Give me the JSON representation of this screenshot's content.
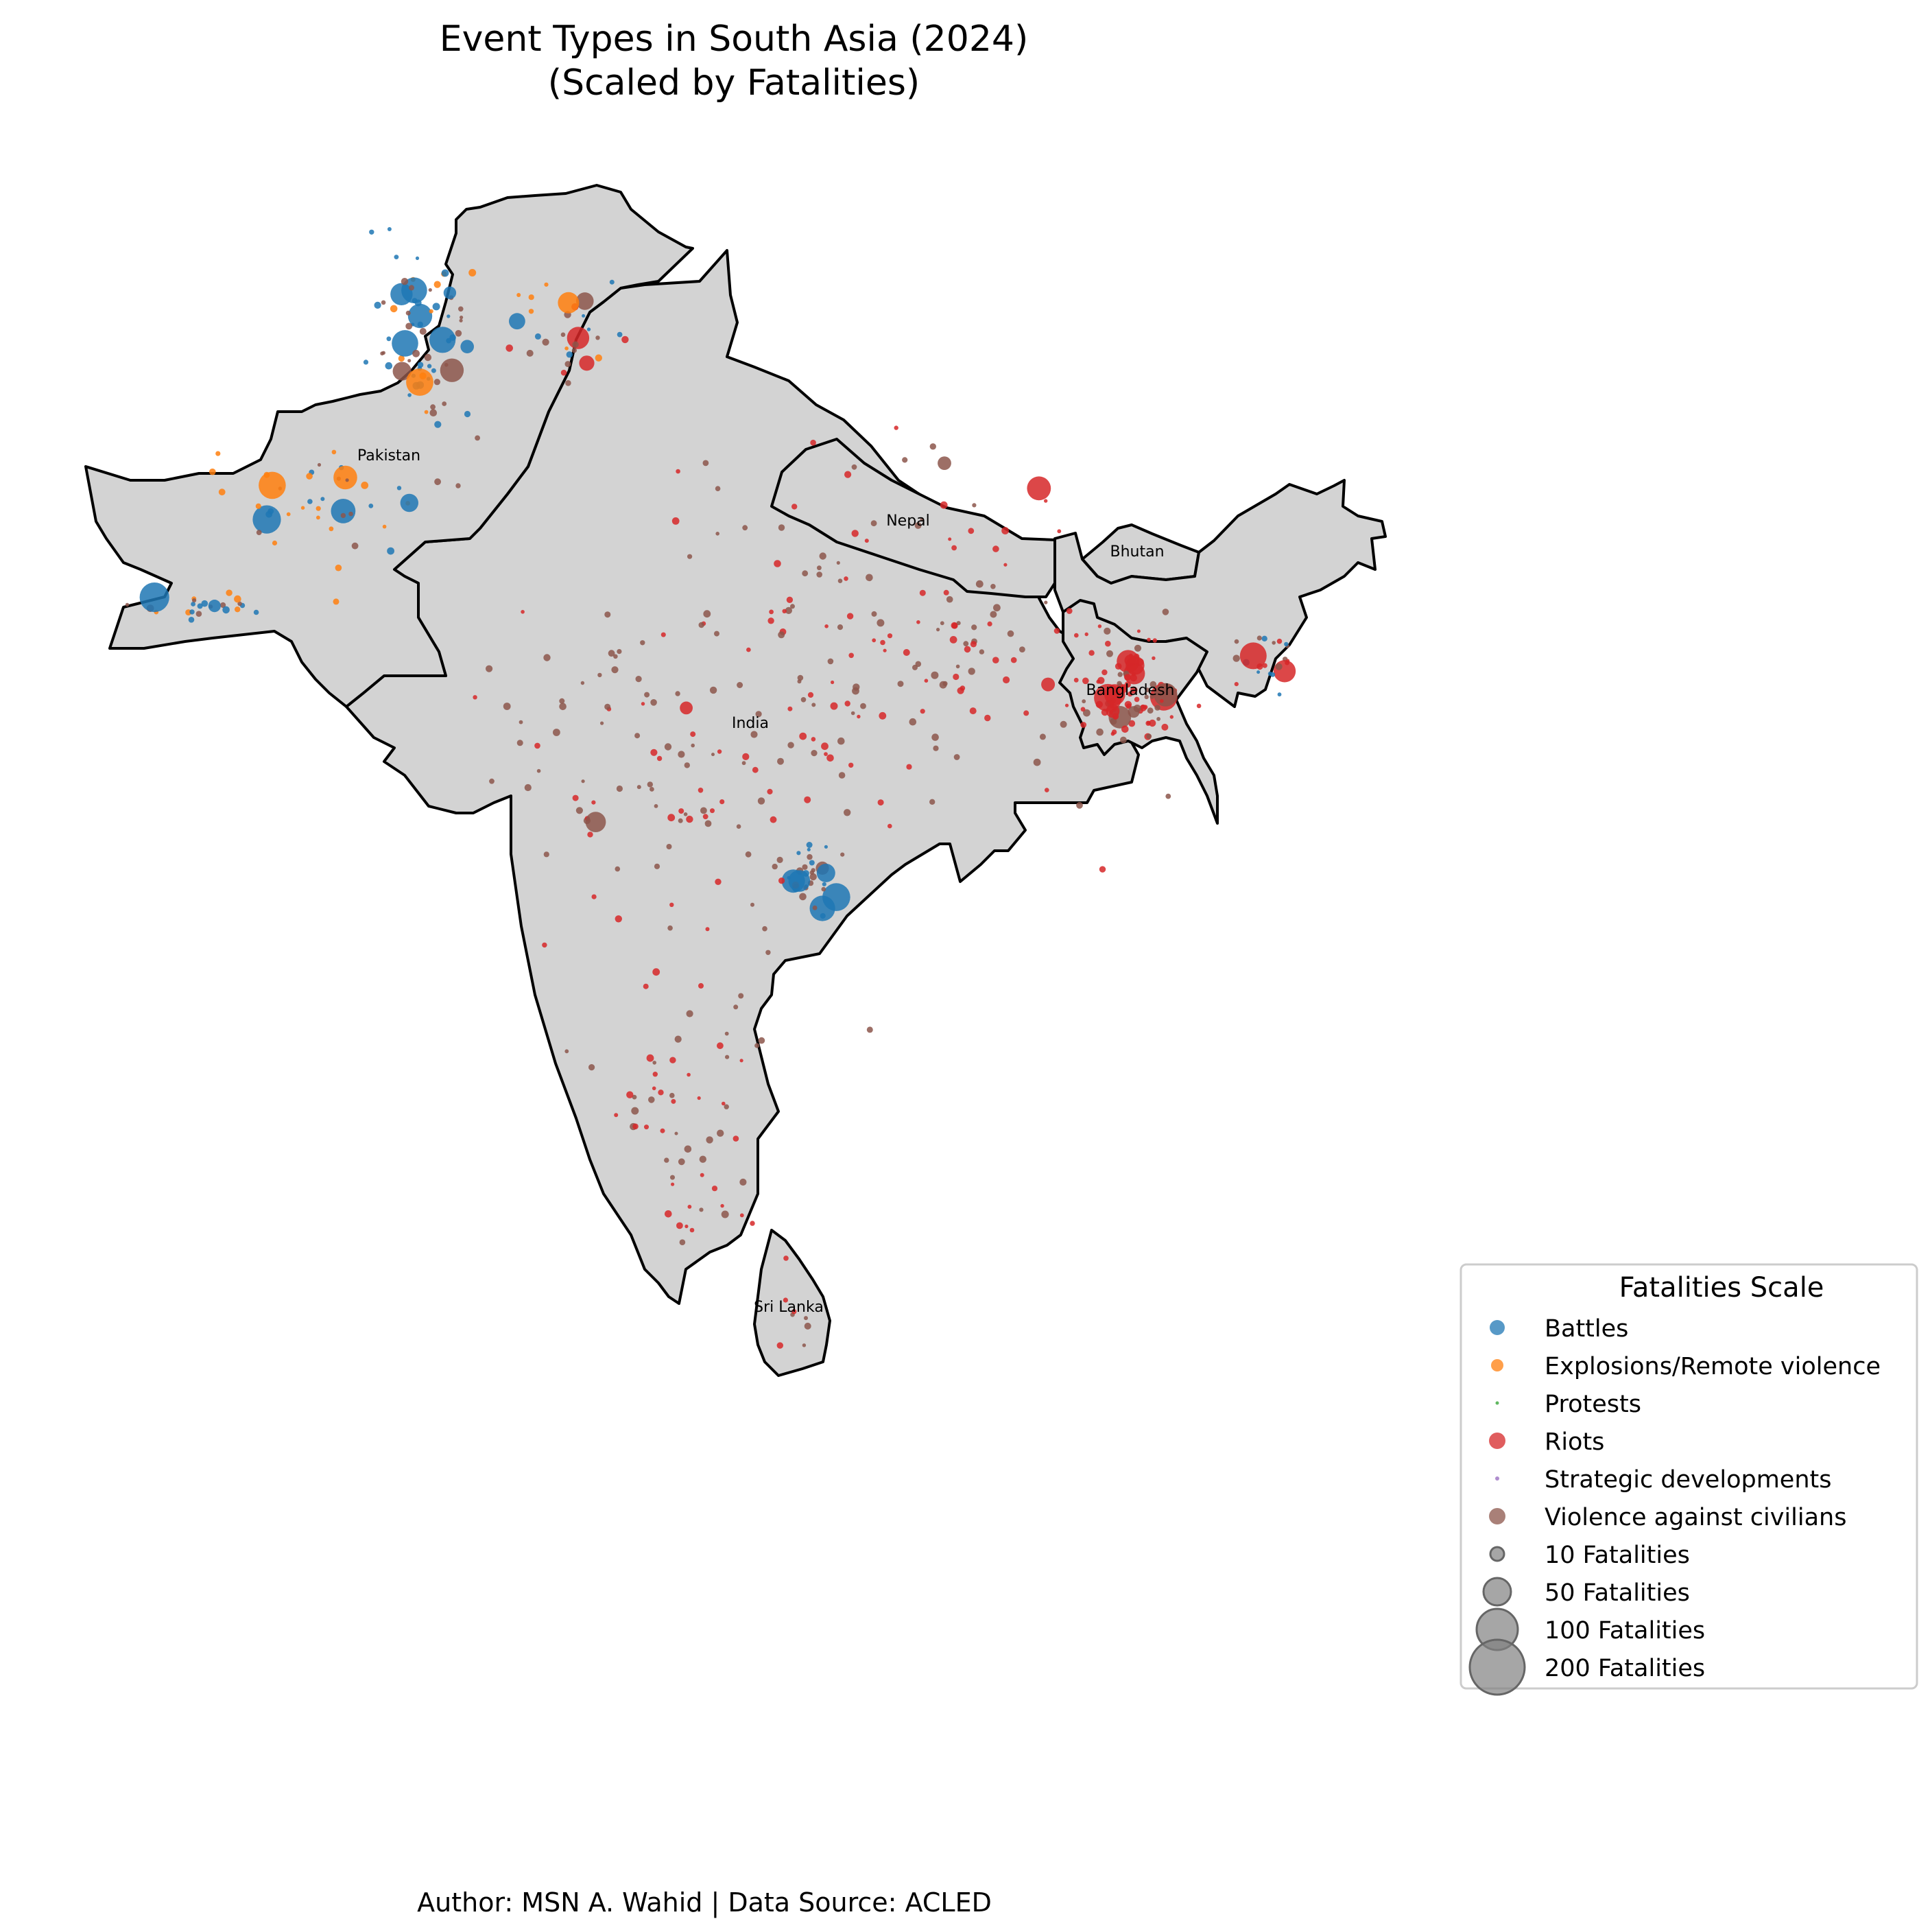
{
  "map": {
    "title_line1": "Event Types in South Asia (2024)",
    "title_line2": "(Scaled by Fatalities)",
    "credit": "Author: MSN A. Wahid | Data Source: ACLED",
    "countries": [
      {
        "id": "pakistan",
        "label": "Pakistan"
      },
      {
        "id": "india",
        "label": "India"
      },
      {
        "id": "nepal",
        "label": "Nepal"
      },
      {
        "id": "bhutan",
        "label": "Bhutan"
      },
      {
        "id": "bangladesh",
        "label": "Bangladesh"
      },
      {
        "id": "sri-lanka",
        "label": "Sri Lanka"
      }
    ]
  },
  "legend": {
    "title": "Fatalities Scale",
    "event_types": [
      {
        "label": "Battles",
        "color": "#1f77b4"
      },
      {
        "label": "Explosions/Remote violence",
        "color": "#ff7f0e"
      },
      {
        "label": "Protests",
        "color": "#2ca02c"
      },
      {
        "label": "Riots",
        "color": "#d62728"
      },
      {
        "label": "Strategic developments",
        "color": "#9467bd"
      },
      {
        "label": "Violence against civilians",
        "color": "#8c564b"
      }
    ],
    "size_scale": [
      {
        "label": "10 Fatalities",
        "fatalities": 10
      },
      {
        "label": "50 Fatalities",
        "fatalities": 50
      },
      {
        "label": "100 Fatalities",
        "fatalities": 100
      },
      {
        "label": "200 Fatalities",
        "fatalities": 200
      }
    ],
    "size_marker_color": "#808080"
  }
}
